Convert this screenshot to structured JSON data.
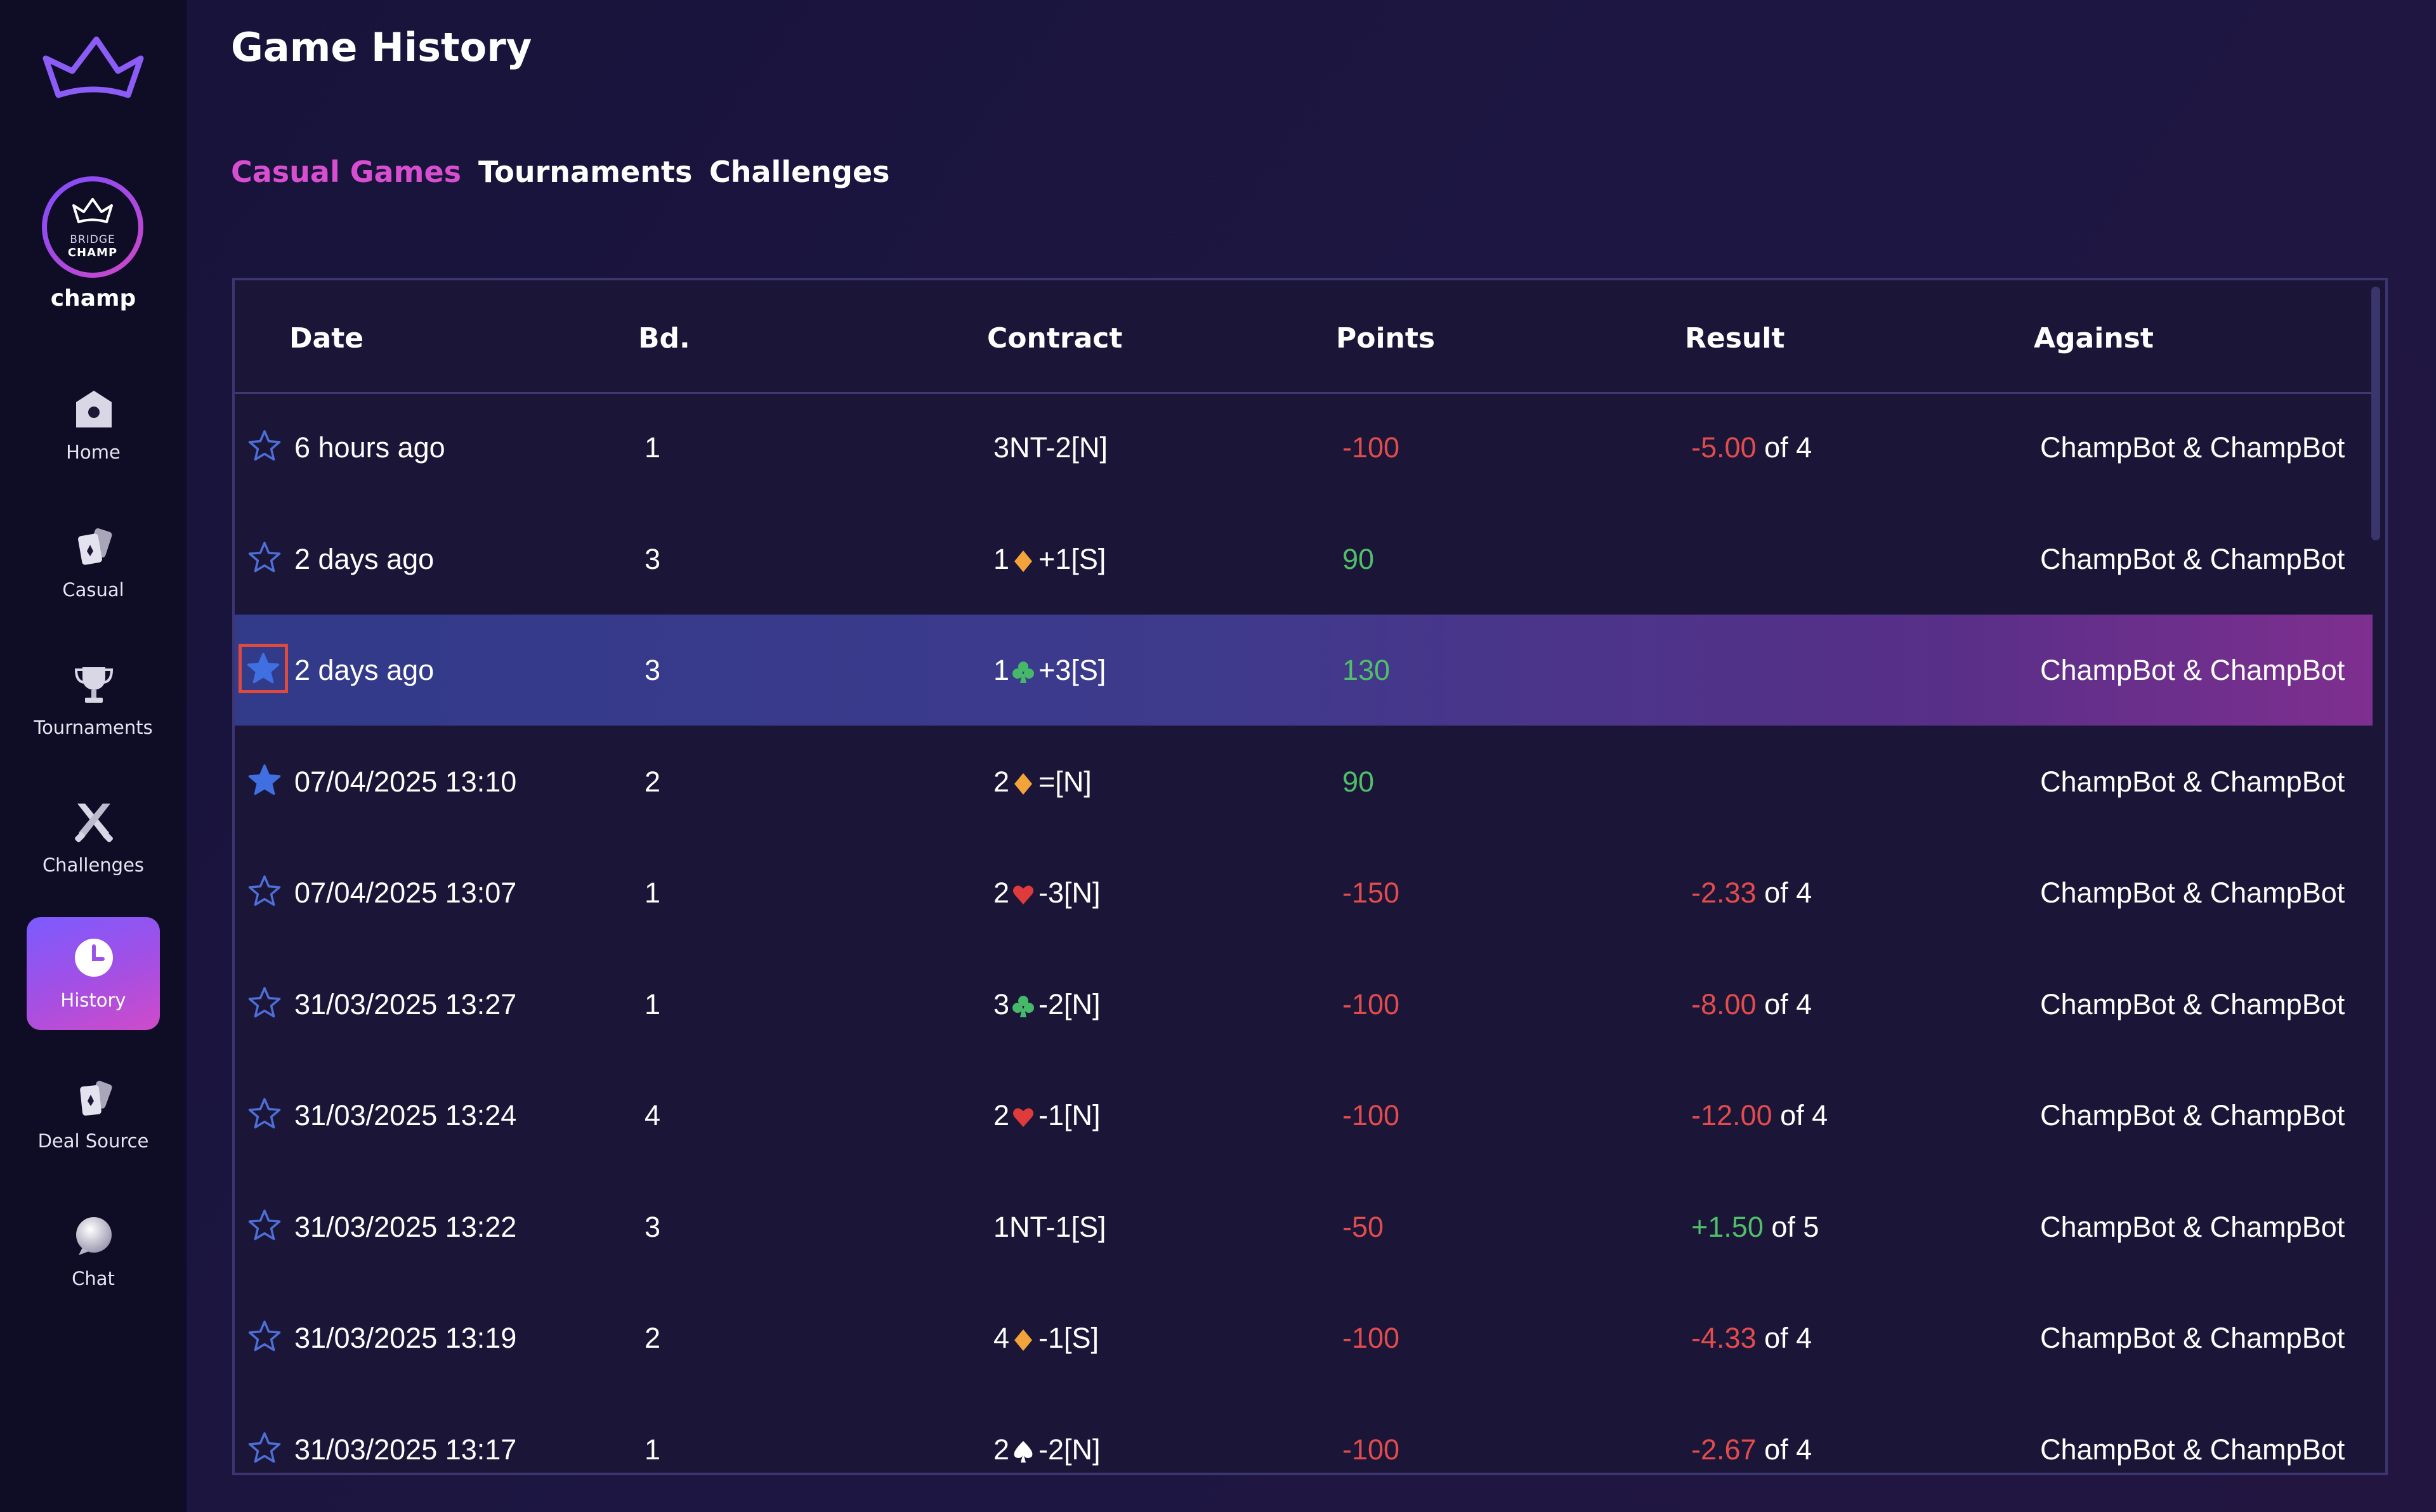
{
  "app": {
    "logo_text_line1": "BRIDGE",
    "logo_text_line2": "CHAMP",
    "username": "champ"
  },
  "colors": {
    "accent": "#d84ed0",
    "negative": "#e34c4c",
    "positive": "#4fbf6a",
    "star_blue": "#3f6fe0",
    "diamond": "#f2a33a",
    "heart": "#e03b3b",
    "club": "#46b86a",
    "spade": "#ffffff"
  },
  "sidebar": {
    "items": [
      {
        "label": "Home",
        "icon": "home-icon"
      },
      {
        "label": "Casual",
        "icon": "cards-icon"
      },
      {
        "label": "Tournaments",
        "icon": "trophy-icon"
      },
      {
        "label": "Challenges",
        "icon": "swords-icon"
      },
      {
        "label": "History",
        "icon": "clock-icon",
        "active": true
      },
      {
        "label": "Deal Source",
        "icon": "deal-cards-icon"
      },
      {
        "label": "Chat",
        "icon": "chat-icon"
      }
    ]
  },
  "page": {
    "title": "Game History",
    "tabs": [
      {
        "label": "Casual Games",
        "active": true
      },
      {
        "label": "Tournaments",
        "active": false
      },
      {
        "label": "Challenges",
        "active": false
      }
    ]
  },
  "table": {
    "headers": {
      "date": "Date",
      "board": "Bd.",
      "contract": "Contract",
      "points": "Points",
      "result": "Result",
      "against": "Against"
    },
    "rows": [
      {
        "starred": false,
        "date": "6 hours ago",
        "board": "1",
        "contract_pre": "3NT",
        "suit": "",
        "contract_post": "-2[N]",
        "points": "-100",
        "points_sign": "neg",
        "result_value": "-5.00",
        "result_sign": "neg",
        "result_of": " of 4",
        "against": "ChampBot & ChampBot"
      },
      {
        "starred": false,
        "date": "2 days ago",
        "board": "3",
        "contract_pre": "1",
        "suit": "diamond",
        "contract_post": "+1[S]",
        "points": "90",
        "points_sign": "pos",
        "result_value": "",
        "result_sign": "",
        "result_of": "",
        "against": "ChampBot & ChampBot"
      },
      {
        "starred": true,
        "selected": true,
        "date": "2 days ago",
        "board": "3",
        "contract_pre": "1",
        "suit": "club",
        "contract_post": "+3[S]",
        "points": "130",
        "points_sign": "pos",
        "result_value": "",
        "result_sign": "",
        "result_of": "",
        "against": "ChampBot & ChampBot"
      },
      {
        "starred": true,
        "date": "07/04/2025 13:10",
        "board": "2",
        "contract_pre": "2",
        "suit": "diamond",
        "contract_post": "=[N]",
        "points": "90",
        "points_sign": "pos",
        "result_value": "",
        "result_sign": "",
        "result_of": "",
        "against": "ChampBot & ChampBot"
      },
      {
        "starred": false,
        "date": "07/04/2025 13:07",
        "board": "1",
        "contract_pre": "2",
        "suit": "heart",
        "contract_post": "-3[N]",
        "points": "-150",
        "points_sign": "neg",
        "result_value": "-2.33",
        "result_sign": "neg",
        "result_of": " of 4",
        "against": "ChampBot & ChampBot"
      },
      {
        "starred": false,
        "date": "31/03/2025 13:27",
        "board": "1",
        "contract_pre": "3",
        "suit": "club",
        "contract_post": "-2[N]",
        "points": "-100",
        "points_sign": "neg",
        "result_value": "-8.00",
        "result_sign": "neg",
        "result_of": " of 4",
        "against": "ChampBot & ChampBot"
      },
      {
        "starred": false,
        "date": "31/03/2025 13:24",
        "board": "4",
        "contract_pre": "2",
        "suit": "heart",
        "contract_post": "-1[N]",
        "points": "-100",
        "points_sign": "neg",
        "result_value": "-12.00",
        "result_sign": "neg",
        "result_of": " of 4",
        "against": "ChampBot & ChampBot"
      },
      {
        "starred": false,
        "date": "31/03/2025 13:22",
        "board": "3",
        "contract_pre": "1NT",
        "suit": "",
        "contract_post": "-1[S]",
        "points": "-50",
        "points_sign": "neg",
        "result_value": "+1.50",
        "result_sign": "pos",
        "result_of": " of 5",
        "against": "ChampBot & ChampBot"
      },
      {
        "starred": false,
        "date": "31/03/2025 13:19",
        "board": "2",
        "contract_pre": "4",
        "suit": "diamond",
        "contract_post": "-1[S]",
        "points": "-100",
        "points_sign": "neg",
        "result_value": "-4.33",
        "result_sign": "neg",
        "result_of": " of 4",
        "against": "ChampBot & ChampBot"
      },
      {
        "starred": false,
        "date": "31/03/2025 13:17",
        "board": "1",
        "contract_pre": "2",
        "suit": "spade",
        "contract_post": "-2[N]",
        "points": "-100",
        "points_sign": "neg",
        "result_value": "-2.67",
        "result_sign": "neg",
        "result_of": " of 4",
        "against": "ChampBot & ChampBot"
      }
    ]
  }
}
